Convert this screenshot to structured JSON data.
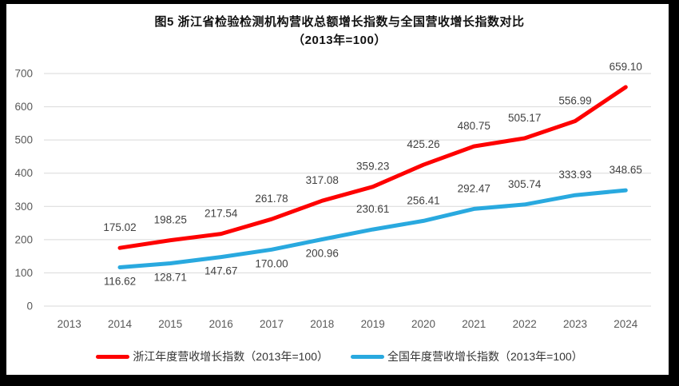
{
  "title": {
    "line1": "图5  浙江省检验检测机构营收总额增长指数与全国营收增长指数对比",
    "line2": "（2013年=100）"
  },
  "chart_data": {
    "type": "line",
    "categories": [
      "2013",
      "2014",
      "2015",
      "2016",
      "2017",
      "2018",
      "2019",
      "2020",
      "2021",
      "2022",
      "2023",
      "2024"
    ],
    "series": [
      {
        "name": "浙江年度营收增长指数（2013年=100）",
        "color": "#FE0000",
        "values": [
          null,
          175.02,
          198.25,
          217.54,
          261.78,
          317.08,
          359.23,
          425.26,
          480.75,
          505.17,
          556.99,
          659.1
        ],
        "label_side": [
          "above",
          "above",
          "above",
          "above",
          "above",
          "above",
          "above",
          "above",
          "above",
          "above",
          "above",
          "above"
        ]
      },
      {
        "name": "全国年度营收增长指数（2013年=100）",
        "color": "#29A9DF",
        "values": [
          null,
          116.62,
          128.71,
          147.67,
          170.0,
          200.96,
          230.61,
          256.41,
          292.47,
          305.74,
          333.93,
          348.65
        ],
        "label_side": [
          "below",
          "below",
          "below",
          "below",
          "below",
          "below",
          "above",
          "above",
          "above",
          "above",
          "above",
          "above"
        ]
      }
    ],
    "ylim": [
      0,
      700
    ],
    "yticks": [
      0,
      100,
      200,
      300,
      400,
      500,
      600,
      700
    ],
    "xlabel": "",
    "ylabel": "",
    "grid": "horizontal",
    "legend_position": "bottom",
    "colors": {
      "gridline": "#D9D9D9",
      "axis_text": "#595959",
      "data_label": "#404040"
    }
  }
}
